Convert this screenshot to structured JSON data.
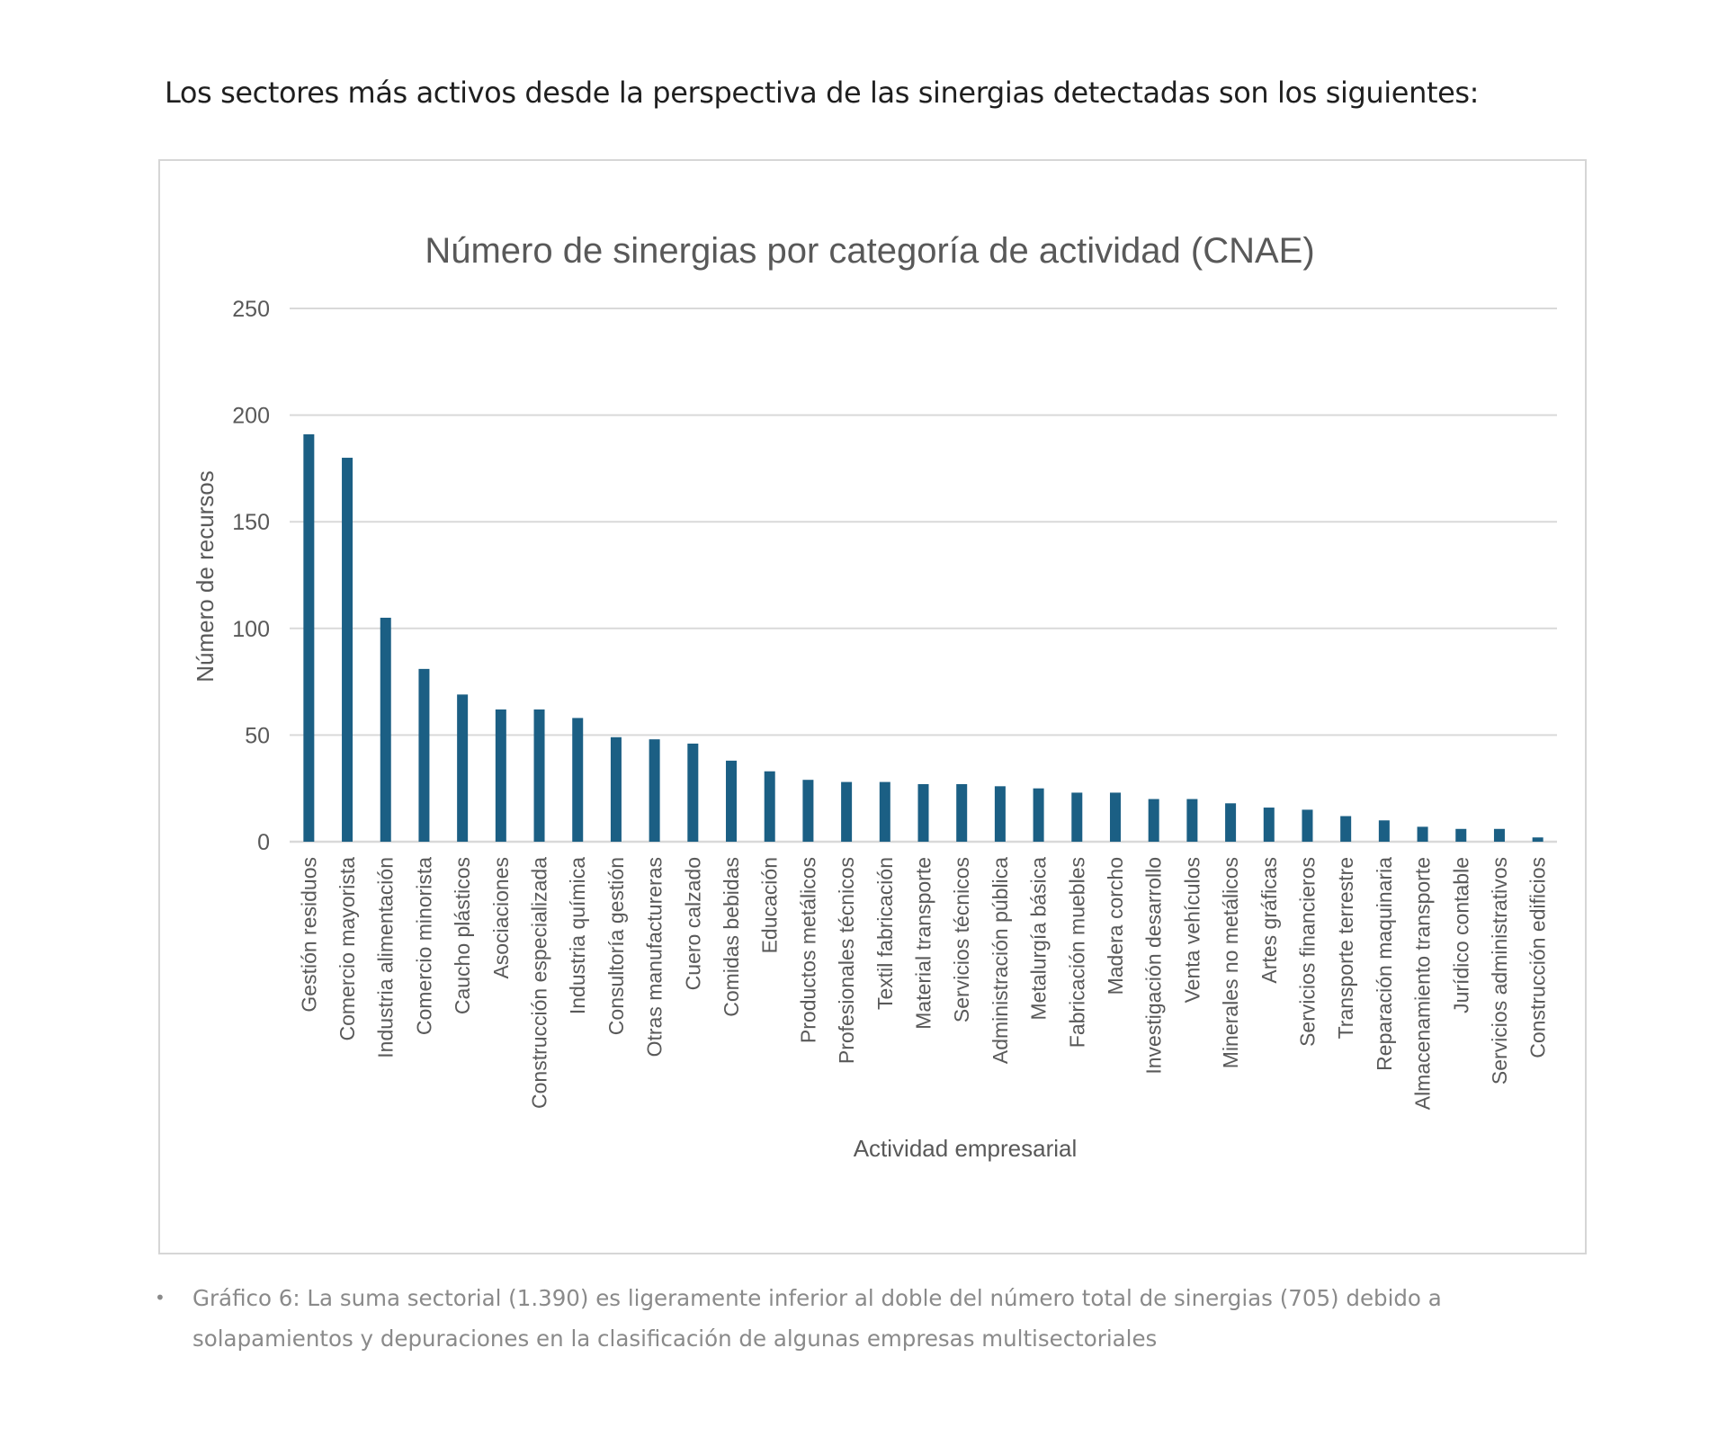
{
  "intro_text": "Los sectores más activos desde la perspectiva de las sinergias detectadas son los siguientes:",
  "caption": {
    "bullet": "•",
    "text": "Gráfico 6: La suma sectorial (1.390) es ligeramente inferior al doble del número total de sinergias (705) debido a solapamientos y depuraciones en la clasificación de algunas empresas multisectoriales"
  },
  "colors": {
    "bar": "#1b5f84",
    "grid": "#d9d9d9",
    "text": "#595959"
  },
  "chart_data": {
    "type": "bar",
    "title": "Número de sinergias por categoría de actividad (CNAE)",
    "xlabel": "Actividad empresarial",
    "ylabel": "Número de recursos",
    "ylim": [
      0,
      250
    ],
    "yticks": [
      0,
      50,
      100,
      150,
      200,
      250
    ],
    "grid": true,
    "categories": [
      "Gestión residuos",
      "Comercio mayorista",
      "Industria alimentación",
      "Comercio minorista",
      "Caucho plásticos",
      "Asociaciones",
      "Construcción especializada",
      "Industria química",
      "Consultoría gestión",
      "Otras manufactureras",
      "Cuero calzado",
      "Comidas bebidas",
      "Educación",
      "Productos metálicos",
      "Profesionales técnicos",
      "Textil fabricación",
      "Material transporte",
      "Servicios técnicos",
      "Administración pública",
      "Metalurgía básica",
      "Fabricación muebles",
      "Madera corcho",
      "Investigación desarrollo",
      "Venta vehículos",
      "Minerales no metálicos",
      "Artes gráficas",
      "Servicios financieros",
      "Transporte terrestre",
      "Reparación maquinaria",
      "Almacenamiento transporte",
      "Jurídico contable",
      "Servicios administrativos",
      "Construcción edificios"
    ],
    "values": [
      191,
      180,
      105,
      81,
      69,
      62,
      62,
      58,
      49,
      48,
      46,
      38,
      33,
      29,
      28,
      28,
      27,
      27,
      26,
      25,
      23,
      23,
      20,
      20,
      18,
      16,
      15,
      12,
      10,
      7,
      6,
      6,
      2
    ]
  }
}
